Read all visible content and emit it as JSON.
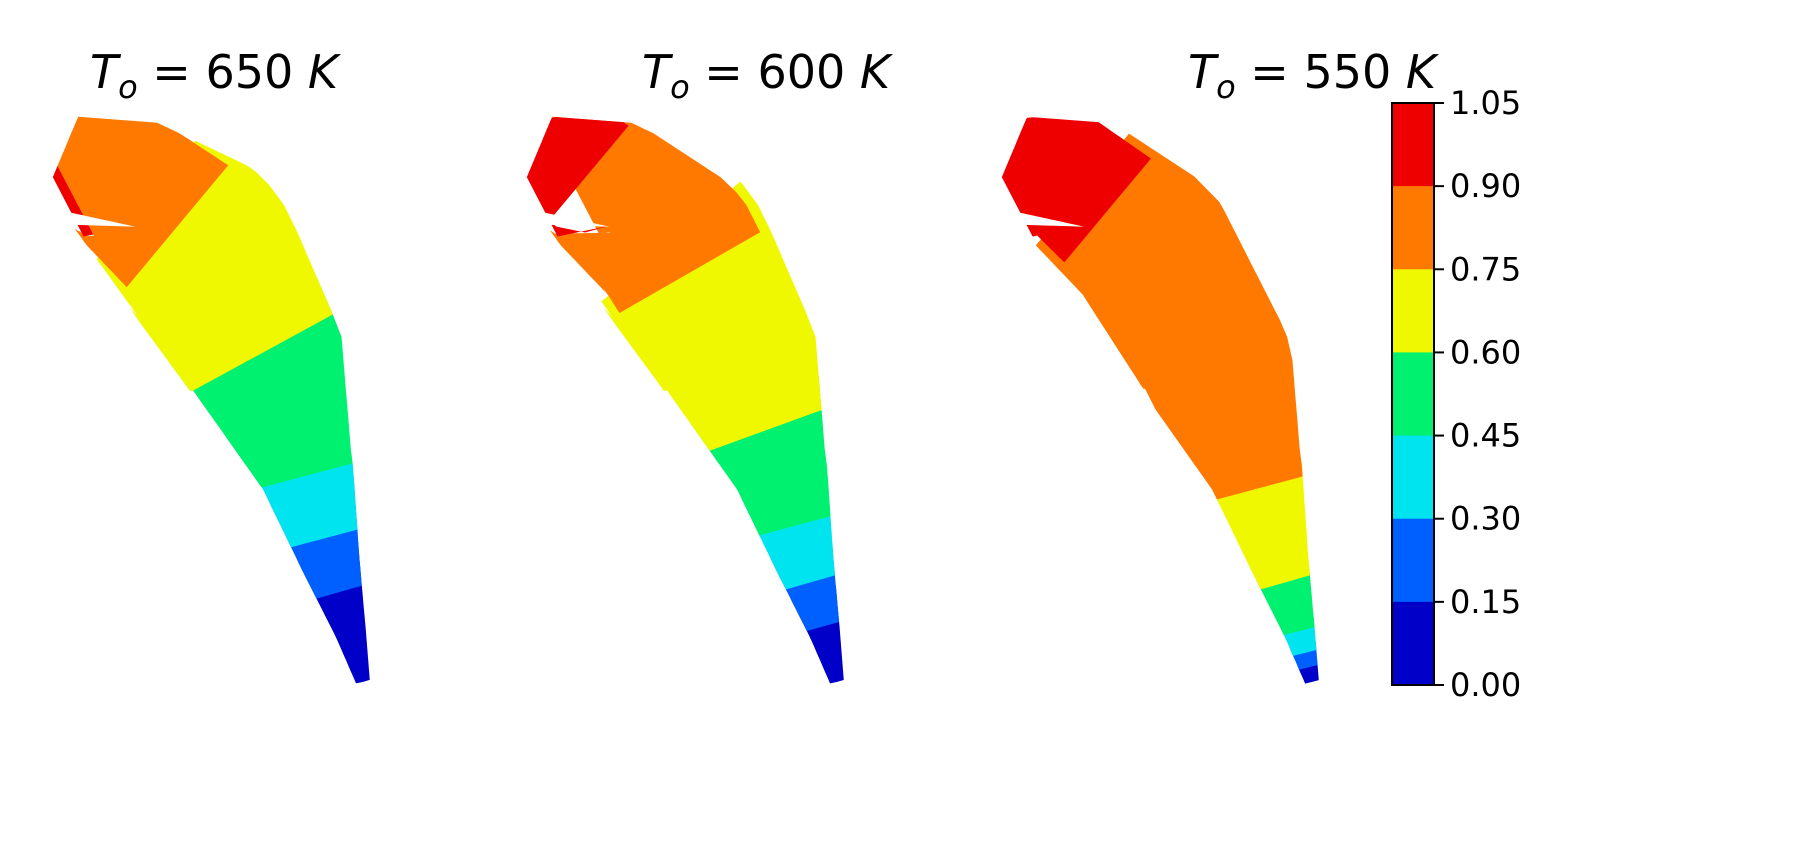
{
  "chart_data": {
    "type": "contour",
    "panels": [
      {
        "title_base": "T",
        "title_sub": "o",
        "title_value": " = 650 ",
        "title_unit": "K",
        "max_level": 1.0
      },
      {
        "title_base": "T",
        "title_sub": "o",
        "title_value": " = 600 ",
        "title_unit": "K",
        "max_level": 1.0
      },
      {
        "title_base": "T",
        "title_sub": "o",
        "title_value": " = 550 ",
        "title_unit": "K",
        "max_level": 1.0
      }
    ],
    "colorbar": {
      "ticks": [
        "0.00",
        "0.15",
        "0.30",
        "0.45",
        "0.60",
        "0.75",
        "0.90",
        "1.05"
      ],
      "levels": [
        0.0,
        0.15,
        0.3,
        0.45,
        0.6,
        0.75,
        0.9,
        1.05
      ],
      "colors": [
        "#0000c8",
        "#0060ff",
        "#00e4f0",
        "#00f070",
        "#f0f800",
        "#ff7800",
        "#ee0000"
      ]
    },
    "ranges": [
      [
        [
          0.0,
          0.3
        ],
        [
          0.22,
          0.4
        ],
        [
          0.32,
          0.5
        ],
        [
          0.42,
          0.62
        ],
        [
          0.58,
          0.8
        ],
        [
          0.75,
          0.975
        ],
        [
          0.975,
          1.0
        ]
      ],
      [
        [
          0.0,
          0.22
        ],
        [
          0.15,
          0.3
        ],
        [
          0.24,
          0.4
        ],
        [
          0.34,
          0.52
        ],
        [
          0.48,
          0.72
        ],
        [
          0.68,
          0.9
        ],
        [
          0.85,
          1.0
        ]
      ],
      [
        [
          0.0,
          0.05
        ],
        [
          0.04,
          0.1
        ],
        [
          0.08,
          0.16
        ],
        [
          0.14,
          0.26
        ],
        [
          0.24,
          0.42
        ],
        [
          0.4,
          0.82
        ],
        [
          0.78,
          1.0
        ]
      ]
    ]
  }
}
